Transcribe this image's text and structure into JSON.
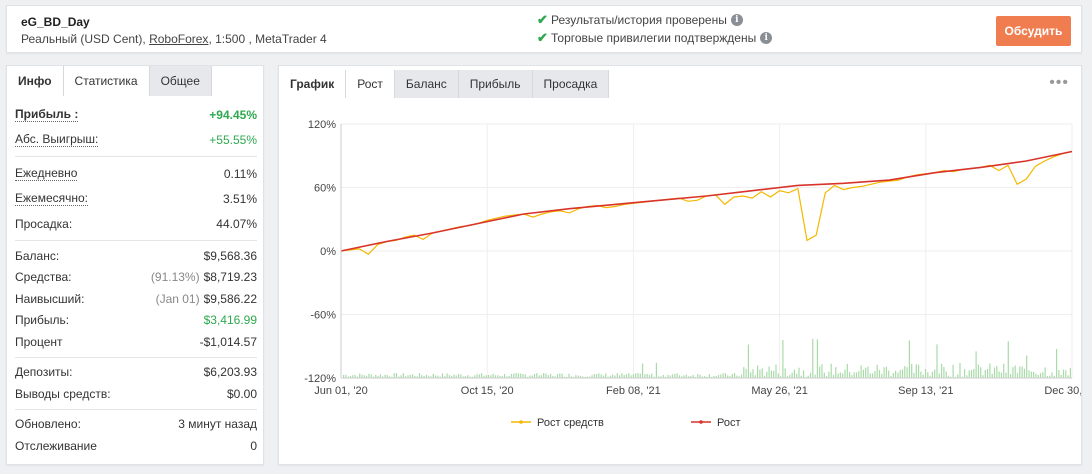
{
  "header": {
    "account_name": "eG_BD_Day",
    "account_type": "Реальный (USD Cent),",
    "broker": "RoboForex",
    "account_rest": ", 1:500 , MetaTrader 4",
    "verify_1": "Результаты/история проверены",
    "verify_2": "Торговые привилегии подтверждены",
    "discuss_label": "Обсудить"
  },
  "left_tabs": [
    "Инфо",
    "Статистика",
    "Общее"
  ],
  "stats": {
    "profit_label": "Прибыль :",
    "profit_value": "+94.45%",
    "abs_gain_label": "Абс. Выигрыш:",
    "abs_gain_value": "+55.55%",
    "daily_label": "Ежедневно",
    "daily_value": "0.11%",
    "monthly_label": "Ежемесячно:",
    "monthly_value": "3.51%",
    "drawdown_label": "Просадка:",
    "drawdown_value": "44.07%",
    "balance_label": "Баланс:",
    "balance_value": "$9,568.36",
    "equity_label": "Средства:",
    "equity_pct": "(91.13%)",
    "equity_value": "$8,719.23",
    "highest_label": "Наивысший:",
    "highest_date": "(Jan 01)",
    "highest_value": "$9,586.22",
    "profit2_label": "Прибыль:",
    "profit2_value": "$3,416.99",
    "percent_label": "Процент",
    "percent_value": "-$1,014.57",
    "deposits_label": "Депозиты:",
    "deposits_value": "$6,203.93",
    "withdrawals_label": "Выводы средств:",
    "withdrawals_value": "$0.00",
    "updated_label": "Обновлено:",
    "updated_value": "3 минут назад",
    "tracking_label": "Отслеживание",
    "tracking_value": "0"
  },
  "chart_tabs": [
    "График",
    "Рост",
    "Баланс",
    "Прибыль",
    "Просадка"
  ],
  "chart_data": {
    "type": "line",
    "x_ticks": [
      "Jun 01, '20",
      "Oct 15, '20",
      "Feb 08, '21",
      "May 26, '21",
      "Sep 13, '21",
      "Dec 30, '21"
    ],
    "y_ticks": [
      "120%",
      "60%",
      "0%",
      "-60%",
      "-120%"
    ],
    "ylim": [
      -120,
      120
    ],
    "grid": true,
    "legend_placement": "bottom",
    "series": [
      {
        "name": "Рост средств",
        "color": "#f5b800",
        "points": [
          [
            0,
            0
          ],
          [
            1,
            1
          ],
          [
            2,
            2
          ],
          [
            3,
            -3
          ],
          [
            4,
            6
          ],
          [
            5,
            9
          ],
          [
            6,
            10
          ],
          [
            7,
            13
          ],
          [
            8,
            15
          ],
          [
            9,
            11
          ],
          [
            10,
            17
          ],
          [
            11,
            19
          ],
          [
            12,
            21
          ],
          [
            13,
            23
          ],
          [
            14,
            24
          ],
          [
            15,
            26
          ],
          [
            16,
            29
          ],
          [
            17,
            31
          ],
          [
            18,
            33
          ],
          [
            19,
            34
          ],
          [
            20,
            35
          ],
          [
            21,
            32
          ],
          [
            22,
            35
          ],
          [
            23,
            37
          ],
          [
            24,
            38
          ],
          [
            25,
            36
          ],
          [
            26,
            40
          ],
          [
            27,
            42
          ],
          [
            28,
            43
          ],
          [
            29,
            41
          ],
          [
            30,
            42
          ],
          [
            31,
            44
          ],
          [
            32,
            45
          ],
          [
            33,
            46
          ],
          [
            34,
            47
          ],
          [
            35,
            48
          ],
          [
            36,
            49
          ],
          [
            37,
            50
          ],
          [
            38,
            47
          ],
          [
            39,
            48
          ],
          [
            40,
            52
          ],
          [
            41,
            53
          ],
          [
            42,
            44
          ],
          [
            43,
            51
          ],
          [
            44,
            52
          ],
          [
            45,
            50
          ],
          [
            46,
            56
          ],
          [
            47,
            51
          ],
          [
            48,
            57
          ],
          [
            49,
            55
          ],
          [
            50,
            59
          ],
          [
            51,
            10
          ],
          [
            52,
            15
          ],
          [
            53,
            55
          ],
          [
            54,
            62
          ],
          [
            55,
            58
          ],
          [
            56,
            60
          ],
          [
            57,
            61
          ],
          [
            58,
            63
          ],
          [
            59,
            65
          ],
          [
            60,
            66
          ],
          [
            61,
            67
          ],
          [
            62,
            70
          ],
          [
            63,
            72
          ],
          [
            64,
            73
          ],
          [
            65,
            74
          ],
          [
            66,
            76
          ],
          [
            67,
            75
          ],
          [
            68,
            77
          ],
          [
            69,
            78
          ],
          [
            70,
            79
          ],
          [
            71,
            81
          ],
          [
            72,
            76
          ],
          [
            73,
            81
          ],
          [
            74,
            63
          ],
          [
            75,
            68
          ],
          [
            76,
            80
          ],
          [
            77,
            85
          ],
          [
            78,
            89
          ],
          [
            79,
            92
          ],
          [
            80,
            94
          ]
        ]
      },
      {
        "name": "Рост",
        "color": "#d9342b",
        "points": [
          [
            0,
            0
          ],
          [
            5,
            9
          ],
          [
            10,
            17
          ],
          [
            15,
            26
          ],
          [
            20,
            35
          ],
          [
            25,
            40
          ],
          [
            30,
            44
          ],
          [
            35,
            48
          ],
          [
            40,
            52
          ],
          [
            45,
            57
          ],
          [
            50,
            62
          ],
          [
            55,
            64
          ],
          [
            60,
            67
          ],
          [
            65,
            74
          ],
          [
            70,
            79
          ],
          [
            75,
            85
          ],
          [
            80,
            94
          ]
        ]
      }
    ],
    "trades_volume": true
  },
  "colors": {
    "accent": "#ef7d4f",
    "positive": "#2fa84f",
    "equity_line": "#f5b800",
    "growth_line": "#d9342b",
    "volume": "#a8dba8"
  }
}
